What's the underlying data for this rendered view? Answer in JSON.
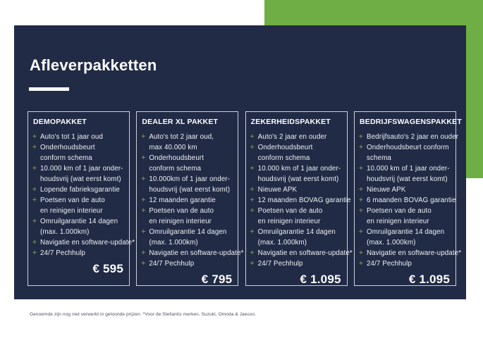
{
  "slide": {
    "title": "Afleverpakketten",
    "footnote": "Genoemde zijn nog niet verwerkt in getoonde prijzen. *Voor de Stellantis merken, Suzuki, Omoda & Jaecoo."
  },
  "colors": {
    "accent_green": "#6fae44",
    "panel_navy": "#222b45",
    "bullet_plus_green": "#6d8a52",
    "card_border": "#ccd1d9"
  },
  "packages": [
    {
      "name": "DEMOPAKKET",
      "features": [
        "Auto's tot 1 jaar oud",
        "Onderhoudsbeurt\nconform schema",
        "10.000 km of 1 jaar onder-\nhoudsvrij (wat eerst komt)",
        "Lopende fabrieksgarantie",
        "Poetsen van de auto\nen reinigen interieur",
        "Omruilgarantie 14 dagen\n(max. 1.000km)",
        "Navigatie en software-update*",
        "24/7 Pechhulp"
      ],
      "price": "€ 595"
    },
    {
      "name": "DEALER XL PAKKET",
      "features": [
        "Auto's tot 2 jaar oud,\nmax 40.000 km",
        "Onderhoudsbeurt\nconform schema",
        "10.000km of 1 jaar onder-\nhoudsvrij (wat eerst komt)",
        "12 maanden garantie",
        "Poetsen van de auto\nen reinigen interieur",
        "Omruilgarantie 14 dagen\n(max. 1.000km)",
        "Navigatie en software-update*",
        "24/7 Pechhulp"
      ],
      "price": "€ 795"
    },
    {
      "name": "ZEKERHEIDSPAKKET",
      "features": [
        "Auto's 2 jaar en ouder",
        "Onderhoudsbeurt\nconform schema",
        "10.000 km of 1 jaar onder-\nhoudsvrij (wat eerst komt)",
        "Nieuwe APK",
        "12 maanden BOVAG garantie",
        "Poetsen van de auto\nen reinigen interieur",
        "Omruilgarantie 14 dagen\n(max. 1.000km)",
        "Navigatie en software-update*",
        "24/7 Pechhulp"
      ],
      "price": "€ 1.095"
    },
    {
      "name": "BEDRIJFSWAGENSPAKKET",
      "features": [
        "Bedrijfsauto's 2 jaar en ouder",
        "Onderhoudsbeurt conform\nschema",
        "10.000 km of 1 jaar onder-\nhoudsvrij (wat eerst komt)",
        "Nieuwe APK",
        "6 maanden BOVAG garantie",
        "Poetsen van de auto\nen reinigen interieur",
        "Omruilgarantie 14 dagen\n(max. 1.000km)",
        "Navigatie en software-update*",
        "24/7 Pechhulp"
      ],
      "price": "€ 1.095"
    }
  ]
}
